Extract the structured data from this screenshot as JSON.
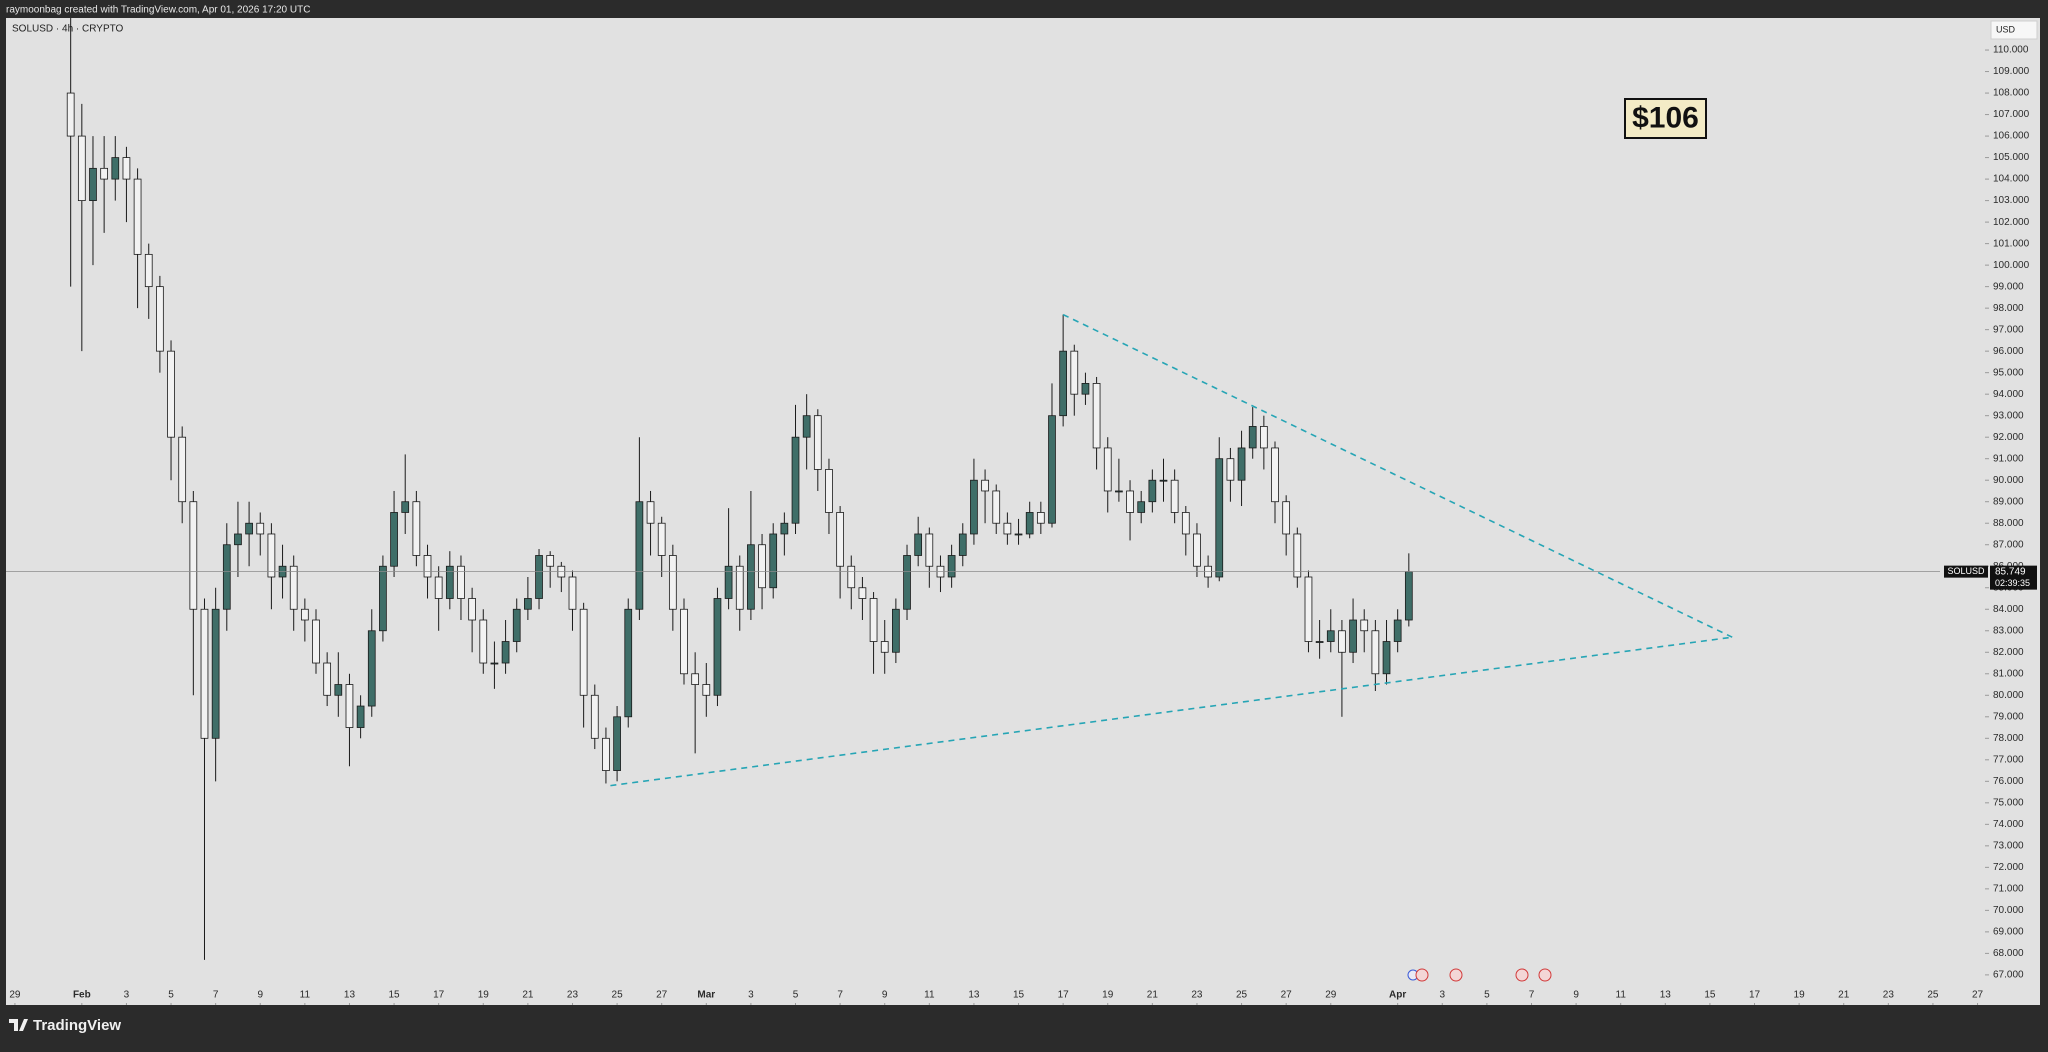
{
  "header": {
    "text": "raymoonbag created with TradingView.com, Apr 01, 2026 17:20 UTC"
  },
  "footer": {
    "brand": "TradingView"
  },
  "chart_data": {
    "type": "candlestick",
    "symbol_label": "SOLUSD · 4h · CRYPTO",
    "currency": "USD",
    "annotation": "$106",
    "up_color": "#3f6e68",
    "down_color": "#f2f2f2",
    "trendline_color": "#26a5b5",
    "last_price": 85.749,
    "countdown": "02:39:35",
    "xlim": [
      28.6,
      117.2
    ],
    "ylim": [
      66.53,
      111.49
    ],
    "xticks": [
      29,
      {
        "value": 32,
        "label": "Feb"
      },
      {
        "value": 34,
        "label": "3"
      },
      {
        "value": 36,
        "label": "5"
      },
      {
        "value": 38,
        "label": "7"
      },
      {
        "value": 40,
        "label": "9"
      },
      {
        "value": 42,
        "label": "11"
      },
      {
        "value": 44,
        "label": "13"
      },
      {
        "value": 46,
        "label": "15"
      },
      {
        "value": 48,
        "label": "17"
      },
      {
        "value": 50,
        "label": "19"
      },
      {
        "value": 52,
        "label": "21"
      },
      {
        "value": 54,
        "label": "23"
      },
      {
        "value": 56,
        "label": "25"
      },
      {
        "value": 58,
        "label": "27"
      },
      {
        "value": 60,
        "label": "Mar"
      },
      {
        "value": 62,
        "label": "3"
      },
      {
        "value": 64,
        "label": "5"
      },
      {
        "value": 66,
        "label": "7"
      },
      {
        "value": 68,
        "label": "9"
      },
      {
        "value": 70,
        "label": "11"
      },
      {
        "value": 72,
        "label": "13"
      },
      {
        "value": 74,
        "label": "15"
      },
      {
        "value": 76,
        "label": "17"
      },
      {
        "value": 78,
        "label": "19"
      },
      {
        "value": 80,
        "label": "21"
      },
      {
        "value": 82,
        "label": "23"
      },
      {
        "value": 84,
        "label": "25"
      },
      {
        "value": 86,
        "label": "27"
      },
      {
        "value": 88,
        "label": "29"
      },
      {
        "value": 91,
        "label": "Apr"
      },
      {
        "value": 93,
        "label": "3"
      },
      {
        "value": 95,
        "label": "5"
      },
      {
        "value": 97,
        "label": "7"
      },
      {
        "value": 99,
        "label": "9"
      },
      {
        "value": 101,
        "label": "11"
      },
      {
        "value": 103,
        "label": "13"
      },
      {
        "value": 105,
        "label": "15"
      },
      {
        "value": 107,
        "label": "17"
      },
      {
        "value": 109,
        "label": "19"
      },
      {
        "value": 111,
        "label": "21"
      },
      {
        "value": 113,
        "label": "23"
      },
      {
        "value": 115,
        "label": "25"
      },
      {
        "value": 117,
        "label": "27"
      }
    ],
    "yticks": [
      {
        "value": 67,
        "label": "67.000"
      },
      {
        "value": 68,
        "label": "68.000"
      },
      {
        "value": 69,
        "label": "69.000"
      },
      {
        "value": 70,
        "label": "70.000"
      },
      {
        "value": 71,
        "label": "71.000"
      },
      {
        "value": 72,
        "label": "72.000"
      },
      {
        "value": 73,
        "label": "73.000"
      },
      {
        "value": 74,
        "label": "74.000"
      },
      {
        "value": 75,
        "label": "75.000"
      },
      {
        "value": 76,
        "label": "76.000"
      },
      {
        "value": 77,
        "label": "77.000"
      },
      {
        "value": 78,
        "label": "78.000"
      },
      {
        "value": 79,
        "label": "79.000"
      },
      {
        "value": 80,
        "label": "80.000"
      },
      {
        "value": 81,
        "label": "81.000"
      },
      {
        "value": 82,
        "label": "82.000"
      },
      {
        "value": 83,
        "label": "83.000"
      },
      {
        "value": 84,
        "label": "84.000"
      },
      {
        "value": 85,
        "label": "85.000"
      },
      {
        "value": 86,
        "label": "86.000"
      },
      {
        "value": 87,
        "label": "87.000"
      },
      {
        "value": 88,
        "label": "88.000"
      },
      {
        "value": 89,
        "label": "89.000"
      },
      {
        "value": 90,
        "label": "90.000"
      },
      {
        "value": 91,
        "label": "91.000"
      },
      {
        "value": 92,
        "label": "92.000"
      },
      {
        "value": 93,
        "label": "93.000"
      },
      {
        "value": 94,
        "label": "94.000"
      },
      {
        "value": 95,
        "label": "95.000"
      },
      {
        "value": 96,
        "label": "96.000"
      },
      {
        "value": 97,
        "label": "97.000"
      },
      {
        "value": 98,
        "label": "98.000"
      },
      {
        "value": 99,
        "label": "99.000"
      },
      {
        "value": 100,
        "label": "100.000"
      },
      {
        "value": 101,
        "label": "101.000"
      },
      {
        "value": 102,
        "label": "102.000"
      },
      {
        "value": 103,
        "label": "103.000"
      },
      {
        "value": 104,
        "label": "104.000"
      },
      {
        "value": 105,
        "label": "105.000"
      },
      {
        "value": 106,
        "label": "106.000"
      },
      {
        "value": 107,
        "label": "107.000"
      },
      {
        "value": 108,
        "label": "108.000"
      },
      {
        "value": 109,
        "label": "109.000"
      },
      {
        "value": 110,
        "label": "110.000"
      }
    ],
    "trendlines": [
      {
        "x": [
          76,
          106
        ],
        "y": [
          97.7,
          82.7
        ]
      },
      {
        "x": [
          55.7,
          106
        ],
        "y": [
          75.8,
          82.7
        ]
      }
    ],
    "series": [
      {
        "name": "SOLUSD",
        "x": [
          31.5,
          32,
          32.5,
          33,
          33.5,
          34,
          34.5,
          35,
          35.5,
          36,
          36.5,
          37,
          37.5,
          38,
          38.5,
          39,
          39.5,
          40,
          40.5,
          41,
          41.5,
          42,
          42.5,
          43,
          43.5,
          44,
          44.5,
          45,
          45.5,
          46,
          46.5,
          47,
          47.5,
          48,
          48.5,
          49,
          49.5,
          50,
          50.5,
          51,
          51.5,
          52,
          52.5,
          53,
          53.5,
          54,
          54.5,
          55,
          55.5,
          56,
          56.5,
          57,
          57.5,
          58,
          58.5,
          59,
          59.5,
          60,
          60.5,
          61,
          61.5,
          62,
          62.5,
          63,
          63.5,
          64,
          64.5,
          65,
          65.5,
          66,
          66.5,
          67,
          67.5,
          68,
          68.5,
          69,
          69.5,
          70,
          70.5,
          71,
          71.5,
          72,
          72.5,
          73,
          73.5,
          74,
          74.5,
          75,
          75.5,
          76,
          76.5,
          77,
          77.5,
          78,
          78.5,
          79,
          79.5,
          80,
          80.5,
          81,
          81.5,
          82,
          82.5,
          83,
          83.5,
          84,
          84.5,
          85,
          85.5,
          86,
          86.5,
          87,
          87.5,
          88,
          88.5,
          89,
          89.5,
          90,
          90.5,
          91,
          91.5
        ],
        "open": [
          108,
          106,
          103,
          104.5,
          104,
          105,
          104,
          100.5,
          99,
          96,
          92,
          89,
          84,
          78,
          84,
          87,
          87.5,
          88,
          87.5,
          85.5,
          86,
          84,
          83.5,
          81.5,
          80,
          80.5,
          78.5,
          79.5,
          83,
          86,
          88.5,
          89,
          86.5,
          85.5,
          84.5,
          86,
          84.5,
          83.5,
          81.5,
          81.5,
          82.5,
          84,
          84.5,
          86.5,
          86,
          85.5,
          84,
          80,
          78,
          76.5,
          79,
          84,
          89,
          88,
          86.5,
          84,
          81,
          80.5,
          80,
          84.5,
          86,
          84,
          87,
          85,
          87.5,
          88,
          92,
          93,
          90.5,
          88.5,
          86,
          85,
          84.5,
          82.5,
          82,
          84,
          86.5,
          87.5,
          86,
          85.5,
          86.5,
          87.5,
          90,
          89.5,
          88,
          87.5,
          87.5,
          88.5,
          88,
          93,
          96,
          94,
          94.5,
          91.5,
          89.5,
          89.5,
          88.5,
          89,
          90,
          90,
          88.5,
          87.5,
          86,
          85.5,
          91,
          90,
          91.5,
          92.5,
          91.5,
          89,
          87.5,
          85.5,
          82.5,
          82.5,
          83,
          82,
          83.5,
          83,
          81,
          82.5,
          83.5
        ],
        "high": [
          112,
          107.5,
          106,
          106,
          106,
          105.5,
          104.5,
          101,
          99.5,
          96.5,
          92.5,
          89.5,
          84.5,
          85,
          88,
          89,
          89,
          88.5,
          88,
          87,
          86.5,
          84.5,
          84,
          82,
          82,
          81,
          80,
          84,
          86.5,
          89.5,
          91.2,
          89.5,
          87,
          86,
          86.7,
          86.5,
          85,
          84,
          82.5,
          83.5,
          84.5,
          85.5,
          86.8,
          86.7,
          86.2,
          85.8,
          84.3,
          80.5,
          78.5,
          79.5,
          84.5,
          92,
          89.5,
          88.3,
          87,
          84.5,
          82,
          81.5,
          85,
          88.7,
          86.5,
          89.5,
          87.5,
          88,
          88.5,
          93.5,
          94,
          93.3,
          91,
          88.8,
          86.5,
          85.5,
          84.8,
          83.5,
          84.5,
          87,
          88.3,
          87.8,
          86.5,
          87,
          88,
          91,
          90.5,
          89.8,
          88.5,
          88.2,
          89,
          89,
          94.5,
          97.7,
          96.3,
          95,
          94.8,
          92,
          91,
          90,
          89.5,
          90.5,
          91,
          90.5,
          88.8,
          88,
          86.5,
          92,
          91.5,
          92.3,
          93.4,
          93,
          91.8,
          89.3,
          87.8,
          85.8,
          83.5,
          84,
          83.5,
          84.5,
          84,
          83.5,
          83.5,
          84,
          86.6
        ],
        "low": [
          99,
          96,
          100,
          101.5,
          103,
          102,
          98,
          97.5,
          95,
          90,
          88,
          80,
          67.7,
          76,
          83,
          85.5,
          86,
          86.5,
          84,
          84.5,
          83,
          82.5,
          81,
          79.5,
          79,
          76.7,
          78,
          79,
          82.5,
          85.5,
          87.5,
          86,
          84.5,
          83,
          84,
          83.5,
          82,
          81,
          80.3,
          81,
          82,
          83.5,
          84,
          85,
          84.8,
          83,
          78.5,
          77.5,
          75.9,
          76,
          78.5,
          83.5,
          86.5,
          85.5,
          83,
          80.5,
          77.3,
          79,
          79.5,
          84,
          83,
          83.5,
          84,
          84.5,
          86.5,
          87.5,
          90.5,
          89.5,
          87.5,
          84.5,
          84,
          83.5,
          81,
          81,
          81.5,
          83.5,
          86,
          85,
          84.8,
          85,
          86,
          87,
          88,
          87.5,
          87,
          87,
          87.3,
          87.5,
          87.8,
          92.5,
          93,
          93.5,
          90.5,
          88.5,
          89,
          87.2,
          88,
          88.5,
          89,
          88,
          86.5,
          85.5,
          85,
          85.3,
          89,
          88.8,
          91,
          90.5,
          88,
          86.5,
          85,
          82,
          81.7,
          82,
          79,
          81.5,
          82,
          80.2,
          80.5,
          82,
          83.2
        ],
        "close": [
          106,
          103,
          104.5,
          104,
          105,
          104,
          100.5,
          99,
          96,
          92,
          89,
          84,
          78,
          84,
          87,
          87.5,
          88,
          87.5,
          85.5,
          86,
          84,
          83.5,
          81.5,
          80,
          80.5,
          78.5,
          79.5,
          83,
          86,
          88.5,
          89,
          86.5,
          85.5,
          84.5,
          86,
          84.5,
          83.5,
          81.5,
          81.5,
          82.5,
          84,
          84.5,
          86.5,
          86,
          85.5,
          84,
          80,
          78,
          76.5,
          79,
          84,
          89,
          88,
          86.5,
          84,
          81,
          80.5,
          80,
          84.5,
          86,
          84,
          87,
          85,
          87.5,
          88,
          92,
          93,
          90.5,
          88.5,
          86,
          85,
          84.5,
          82.5,
          82,
          84,
          86.5,
          87.5,
          86,
          85.5,
          86.5,
          87.5,
          90,
          89.5,
          88,
          87.5,
          87.5,
          88.5,
          88,
          93,
          96,
          94,
          94.5,
          91.5,
          89.5,
          89.5,
          88.5,
          89,
          90,
          90,
          88.5,
          87.5,
          86,
          85.5,
          91,
          90,
          91.5,
          92.5,
          91.5,
          89,
          87.5,
          85.5,
          82.5,
          82.5,
          83,
          82,
          83.5,
          83,
          81,
          82.5,
          83.5,
          85.749
        ]
      }
    ]
  }
}
